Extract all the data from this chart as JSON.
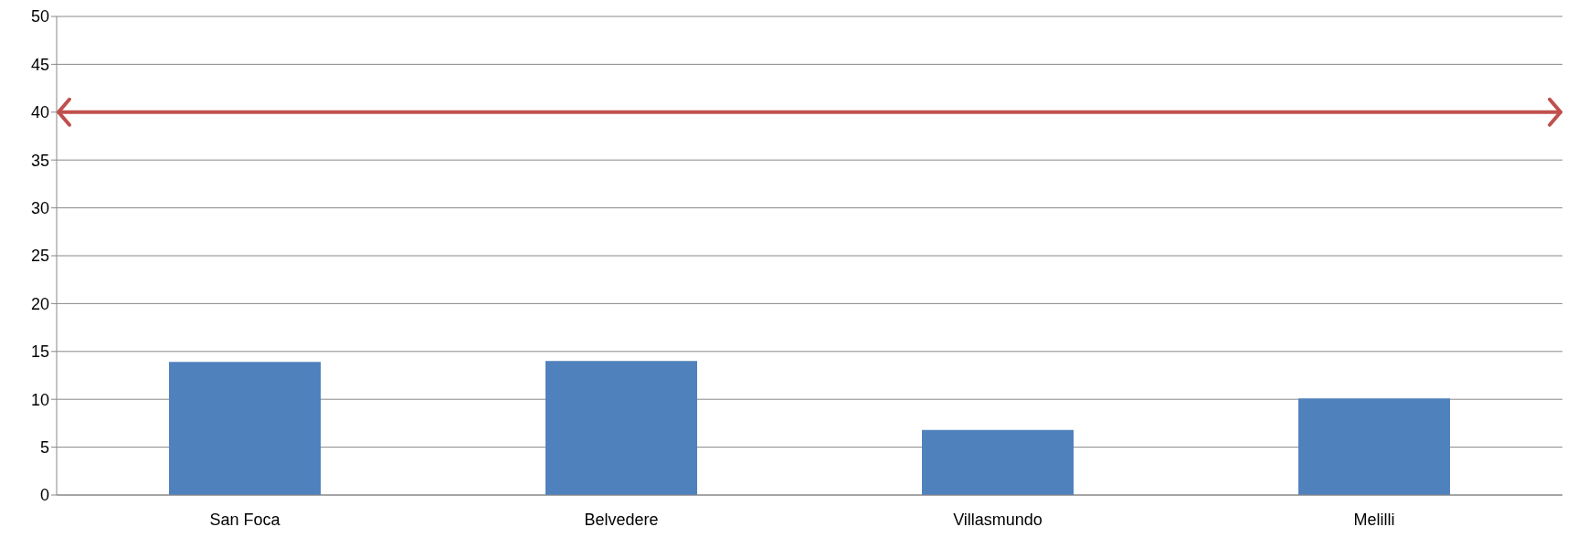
{
  "chart_data": {
    "type": "bar",
    "categories": [
      "San Foca",
      "Belvedere",
      "Villasmundo",
      "Melilli"
    ],
    "values": [
      13.9,
      14,
      6.8,
      10.1
    ],
    "color": "#4f81bd",
    "ylim": [
      0,
      50
    ],
    "yticks": [
      0,
      5,
      10,
      15,
      20,
      25,
      30,
      35,
      40,
      45,
      50
    ],
    "grid": "y",
    "ref_lines": [
      {
        "axis": "y",
        "value": 40,
        "color": "#c0504d"
      }
    ]
  }
}
